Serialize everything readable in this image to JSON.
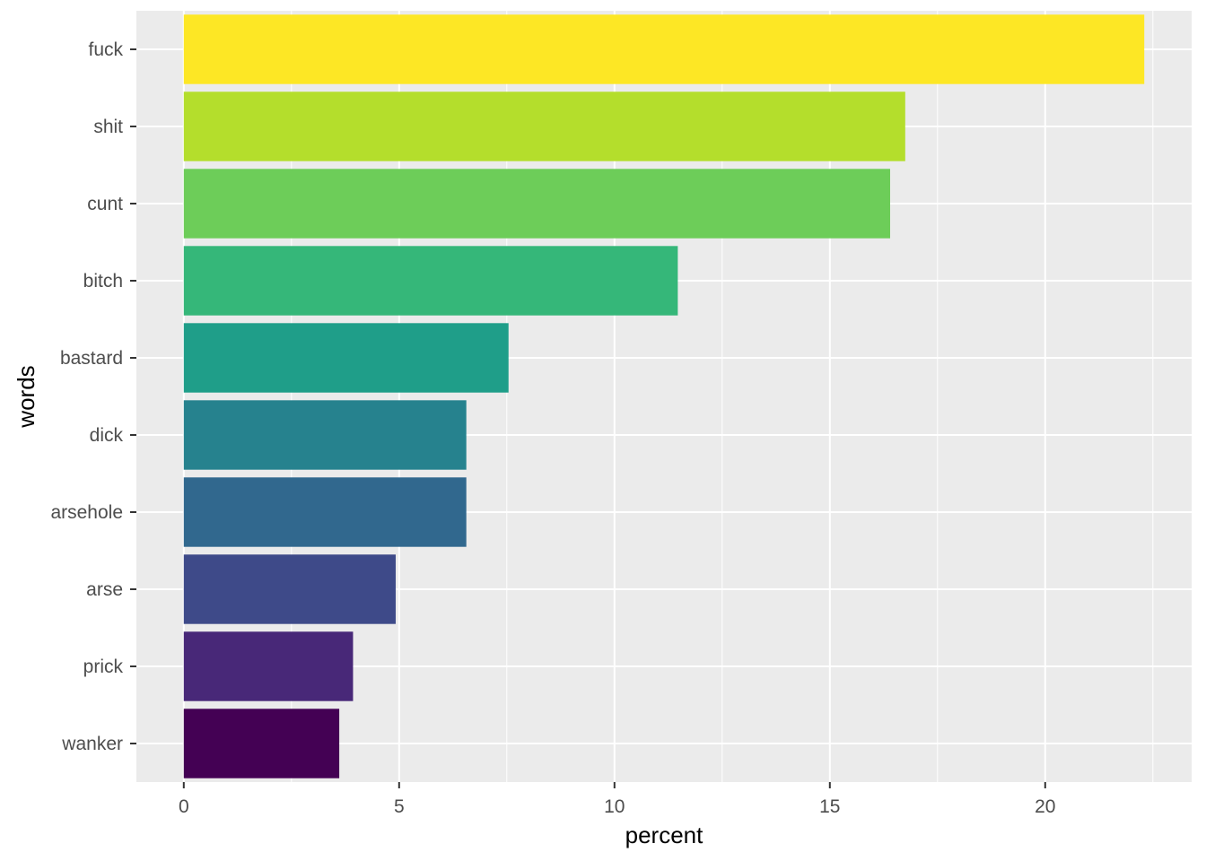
{
  "chart_data": {
    "type": "bar",
    "orientation": "horizontal",
    "title": "",
    "xlabel": "percent",
    "ylabel": "words",
    "categories": [
      "fuck",
      "shit",
      "cunt",
      "bitch",
      "bastard",
      "dick",
      "arsehole",
      "arse",
      "prick",
      "wanker"
    ],
    "values": [
      22.3,
      16.75,
      16.4,
      11.47,
      7.54,
      6.56,
      6.56,
      4.92,
      3.93,
      3.61
    ],
    "colors": [
      "#FDE725",
      "#B4DE2C",
      "#6DCD59",
      "#35B779",
      "#1F9E89",
      "#26828E",
      "#31688E",
      "#3E4A89",
      "#482878",
      "#440154"
    ],
    "xlim": [
      -1.1,
      23.4
    ],
    "xticks": [
      0,
      5,
      10,
      15,
      20
    ],
    "xtick_labels": [
      "0",
      "5",
      "10",
      "15",
      "20"
    ],
    "grid": true,
    "background": "#EBEBEB",
    "legend": "none"
  }
}
